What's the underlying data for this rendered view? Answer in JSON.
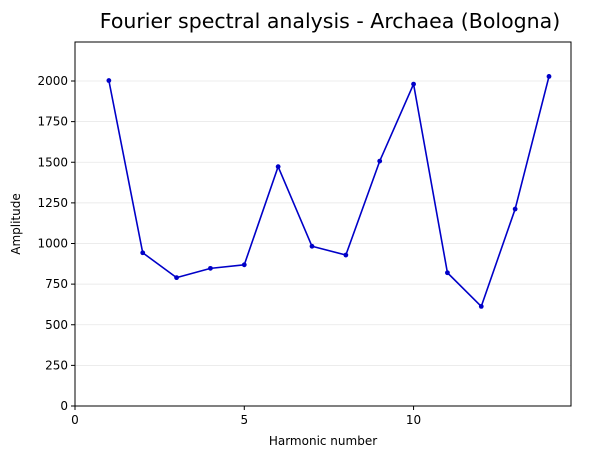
{
  "chart_data": {
    "type": "line",
    "title": "Fourier spectral analysis - Archaea (Bologna)",
    "xlabel": "Harmonic number",
    "ylabel": "Amplitude",
    "xlim": [
      0,
      14.65
    ],
    "ylim": [
      0,
      2240
    ],
    "xticks": [
      0,
      5,
      10
    ],
    "yticks": [
      0,
      250,
      500,
      750,
      1000,
      1250,
      1500,
      1750,
      2000
    ],
    "grid": "y-only",
    "series": [
      {
        "color": "#0000c8",
        "marker": "dot",
        "x": [
          1,
          2,
          3,
          4,
          5,
          6,
          7,
          8,
          9,
          10,
          11,
          12,
          13,
          14
        ],
        "y": [
          2003,
          943,
          790,
          847,
          869,
          1473,
          983,
          929,
          1507,
          1981,
          820,
          613,
          1212,
          2028
        ]
      }
    ]
  }
}
